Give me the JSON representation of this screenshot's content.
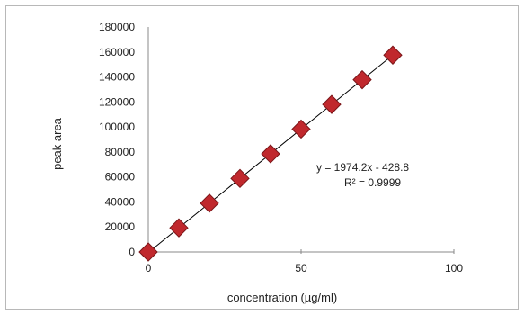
{
  "chart_data": {
    "type": "scatter",
    "title": "",
    "xlabel": "concentration (µg/ml)",
    "ylabel": "peak area",
    "xlim": [
      0,
      100
    ],
    "ylim": [
      0,
      180000
    ],
    "xticks": [
      "0",
      "50",
      "100"
    ],
    "yticks": [
      "0",
      "20000",
      "40000",
      "60000",
      "80000",
      "100000",
      "120000",
      "140000",
      "160000",
      "180000"
    ],
    "grid": false,
    "legend": "none",
    "series": [
      {
        "marker": "diamond",
        "color": "#c0282d",
        "x": [
          0,
          10,
          20,
          30,
          40,
          50,
          60,
          70,
          80
        ],
        "y": [
          0,
          19300,
          39000,
          58800,
          78500,
          98300,
          118000,
          137800,
          157500
        ]
      }
    ],
    "trendline": {
      "slope": 1974.2,
      "intercept": -428.8,
      "equation": "y = 1974.2x - 428.8",
      "r2": "R² = 0.9999",
      "color": "#000000"
    }
  }
}
